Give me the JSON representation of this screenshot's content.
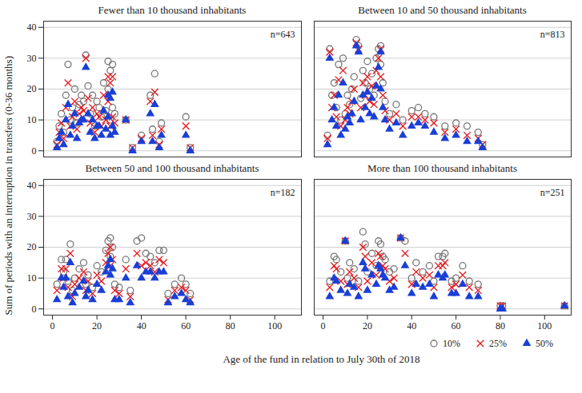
{
  "chart_data": {
    "type": "scatter",
    "ylabel": "Sum of periods with an interruption in transfers (0-36 months)",
    "xlabel": "Age of the fund in relation to July 30th of 2018",
    "xlim": [
      -4,
      112
    ],
    "ylim": [
      -2,
      42
    ],
    "xticks": [
      0,
      20,
      40,
      60,
      80,
      100
    ],
    "yticks": [
      0,
      10,
      20,
      30,
      40
    ],
    "grid": true,
    "legend": "bottom",
    "series": [
      {
        "name": "10%",
        "color": "#777777",
        "marker": "circle"
      },
      {
        "name": "25%",
        "color": "#e8161b",
        "marker": "times"
      },
      {
        "name": "50%",
        "color": "#1a3fd6",
        "marker": "triangle"
      }
    ],
    "panels": [
      {
        "title": "Fewer than 10 thousand inhabitants",
        "annotation": "n=643",
        "tick_labels": "y",
        "x": [
          2,
          3,
          4,
          5,
          6,
          7,
          8,
          9,
          10,
          11,
          12,
          13,
          14,
          15,
          16,
          17,
          18,
          19,
          20,
          21,
          22,
          23,
          24,
          25,
          25,
          26,
          26,
          27,
          27,
          28,
          33,
          36,
          40,
          44,
          45,
          46,
          48,
          49,
          60,
          62
        ],
        "values": [
          [
            3,
            8,
            12,
            6,
            18,
            28,
            10,
            14,
            20,
            9,
            15,
            18,
            16,
            31,
            21,
            12,
            18,
            8,
            16,
            14,
            11,
            22,
            13,
            29,
            20,
            26,
            10,
            28,
            14,
            12,
            10,
            1,
            5,
            18,
            7,
            25,
            3,
            9,
            11,
            1
          ],
          [
            2,
            6,
            9,
            4,
            14,
            22,
            8,
            11,
            16,
            7,
            12,
            14,
            13,
            30,
            17,
            9,
            14,
            6,
            12,
            11,
            8,
            18,
            10,
            24,
            16,
            22,
            8,
            24,
            11,
            9,
            10,
            1,
            4,
            16,
            5,
            19,
            2,
            7,
            8,
            1
          ],
          [
            1,
            4,
            6,
            2,
            10,
            15,
            5,
            8,
            12,
            4,
            9,
            10,
            10,
            27,
            12,
            6,
            10,
            4,
            8,
            8,
            5,
            13,
            7,
            18,
            11,
            17,
            5,
            19,
            8,
            6,
            10,
            0,
            3,
            12,
            3,
            15,
            1,
            5,
            5,
            0
          ]
        ]
      },
      {
        "title": "Between 10 and 50 thousand inhabitants",
        "annotation": "n=813",
        "tick_labels": false,
        "x": [
          2,
          3,
          4,
          5,
          6,
          7,
          8,
          9,
          10,
          11,
          12,
          13,
          14,
          15,
          16,
          17,
          18,
          19,
          20,
          21,
          22,
          23,
          24,
          25,
          26,
          26,
          27,
          28,
          30,
          33,
          36,
          40,
          43,
          46,
          50,
          55,
          60,
          65,
          70,
          72
        ],
        "values": [
          [
            5,
            33,
            18,
            22,
            14,
            28,
            10,
            30,
            12,
            18,
            15,
            20,
            24,
            36,
            34,
            17,
            26,
            22,
            29,
            20,
            25,
            18,
            30,
            33,
            34,
            28,
            22,
            16,
            12,
            15,
            10,
            13,
            14,
            12,
            11,
            8,
            9,
            8,
            6,
            2
          ],
          [
            4,
            32,
            14,
            18,
            11,
            23,
            8,
            26,
            10,
            14,
            12,
            16,
            20,
            35,
            33,
            14,
            22,
            18,
            24,
            16,
            21,
            15,
            26,
            30,
            33,
            24,
            18,
            13,
            10,
            12,
            8,
            11,
            11,
            10,
            9,
            6,
            7,
            5,
            4,
            2
          ],
          [
            2,
            30,
            10,
            14,
            8,
            18,
            5,
            22,
            7,
            11,
            9,
            12,
            16,
            34,
            32,
            10,
            18,
            14,
            19,
            12,
            17,
            11,
            21,
            27,
            32,
            20,
            14,
            10,
            7,
            9,
            5,
            8,
            9,
            8,
            6,
            4,
            5,
            3,
            3,
            1
          ]
        ]
      },
      {
        "title": "Between 50 and 100 thousand inhabitants",
        "annotation": "n=182",
        "tick_labels": true,
        "x": [
          2,
          4,
          5,
          6,
          7,
          8,
          9,
          10,
          12,
          14,
          15,
          16,
          18,
          20,
          22,
          24,
          25,
          26,
          26,
          27,
          28,
          30,
          33,
          35,
          38,
          40,
          42,
          44,
          46,
          48,
          50,
          52,
          55,
          58,
          60,
          62
        ],
        "values": [
          [
            8,
            16,
            12,
            16,
            9,
            21,
            6,
            10,
            13,
            15,
            8,
            11,
            7,
            14,
            12,
            19,
            22,
            23,
            17,
            20,
            8,
            7,
            16,
            6,
            22,
            23,
            18,
            17,
            15,
            19,
            19,
            5,
            8,
            10,
            8,
            5
          ],
          [
            6,
            13,
            10,
            13,
            7,
            18,
            4,
            8,
            10,
            12,
            6,
            9,
            5,
            11,
            9,
            15,
            18,
            20,
            14,
            16,
            6,
            5,
            13,
            4,
            18,
            14,
            15,
            14,
            12,
            16,
            15,
            3,
            6,
            7,
            6,
            3
          ],
          [
            3,
            10,
            7,
            10,
            4,
            15,
            2,
            5,
            7,
            9,
            4,
            6,
            3,
            8,
            6,
            12,
            14,
            16,
            11,
            13,
            3,
            3,
            10,
            2,
            14,
            10,
            12,
            12,
            10,
            12,
            12,
            2,
            4,
            5,
            3,
            2
          ]
        ]
      },
      {
        "title": "More than 100 thousand inhabitants",
        "annotation": "n=251",
        "tick_labels": "x",
        "x": [
          3,
          5,
          6,
          8,
          10,
          11,
          12,
          14,
          16,
          18,
          19,
          20,
          22,
          24,
          25,
          26,
          27,
          28,
          30,
          32,
          35,
          37,
          40,
          42,
          45,
          48,
          50,
          52,
          54,
          55,
          58,
          60,
          63,
          66,
          70,
          80,
          81,
          109
        ],
        "values": [
          [
            9,
            17,
            16,
            12,
            22,
            10,
            15,
            13,
            9,
            25,
            21,
            12,
            18,
            14,
            22,
            21,
            17,
            16,
            12,
            13,
            23,
            22,
            10,
            15,
            12,
            14,
            9,
            17,
            17,
            18,
            9,
            10,
            14,
            9,
            8,
            1,
            1,
            1
          ],
          [
            7,
            14,
            13,
            9,
            22,
            8,
            12,
            10,
            7,
            20,
            17,
            9,
            15,
            11,
            18,
            17,
            14,
            13,
            9,
            10,
            23,
            18,
            8,
            12,
            10,
            11,
            7,
            14,
            14,
            15,
            7,
            8,
            11,
            7,
            6,
            1,
            1,
            1
          ],
          [
            4,
            10,
            9,
            6,
            22,
            5,
            8,
            7,
            4,
            15,
            13,
            6,
            11,
            8,
            14,
            13,
            11,
            10,
            6,
            7,
            23,
            14,
            5,
            8,
            7,
            8,
            4,
            11,
            10,
            11,
            5,
            5,
            8,
            4,
            4,
            0,
            0,
            1
          ]
        ]
      }
    ]
  }
}
